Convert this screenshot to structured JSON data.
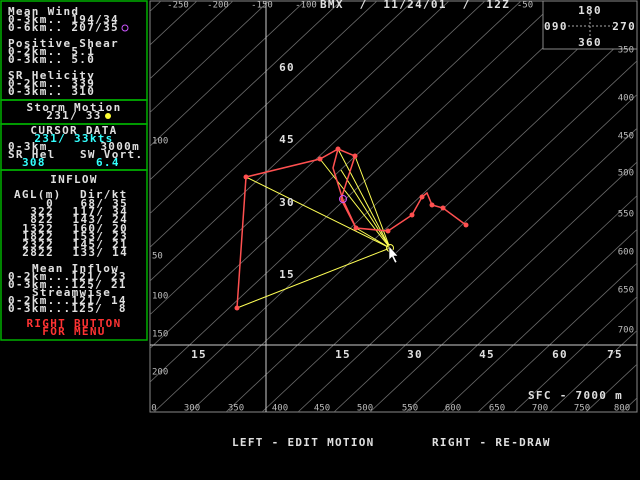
{
  "panel": {
    "mean_wind": {
      "title": "Mean Wind",
      "rows": [
        "0-3km.. 194/34",
        "0-6km.. 207/35"
      ]
    },
    "positive_shear": {
      "title": "Positive Shear",
      "rows": [
        "0-2km.. 5.1",
        "0-3km.. 5.0"
      ]
    },
    "sr_helicity": {
      "title": "SR Helicity",
      "rows": [
        "0-2km.. 339",
        "0-3km.. 310"
      ]
    },
    "storm_motion": {
      "title": "Storm Motion",
      "value": "231/ 33"
    },
    "cursor_data": {
      "title": "CURSOR DATA",
      "wind": "231/ 33kts",
      "layer": "0-3km",
      "height": "3000m",
      "labels": [
        "SR Hel",
        "SW Vort."
      ],
      "values": [
        "308",
        "6.4"
      ]
    },
    "inflow": {
      "title": "INFLOW",
      "headers": [
        "AGL(m)",
        "Dir/kt"
      ],
      "rows": [
        [
          "0",
          "68/ 35"
        ],
        [
          "322",
          "117/ 34"
        ],
        [
          "822",
          "143/ 24"
        ],
        [
          "1322",
          "160/ 20"
        ],
        [
          "1822",
          "153/ 23"
        ],
        [
          "2322",
          "145/ 21"
        ],
        [
          "2822",
          "133/ 14"
        ]
      ],
      "mean_title": "Mean Inflow",
      "mean_rows": [
        "0-2km...121/ 23",
        "0-3km...125/ 21"
      ],
      "stream_title": "Streamwise",
      "stream_rows": [
        "0-2km...121/ 14",
        "0-3km...125/  8"
      ]
    },
    "menu": [
      "RIGHT BUTTON",
      "FOR MENU"
    ]
  },
  "plot": {
    "title": "BMX  /  11/24/01  /  12Z",
    "compass": [
      "180",
      "090",
      "270",
      "360"
    ],
    "top_labels": [
      "-250",
      "-200",
      "-150",
      "-100",
      "-50"
    ],
    "right_labels": [
      "350",
      "400",
      "450",
      "500",
      "550",
      "600",
      "650",
      "700"
    ],
    "left_labels": [
      "100",
      "50",
      "100",
      "150",
      "200"
    ],
    "bottom_labels": [
      "0",
      "300",
      "350",
      "400",
      "450",
      "500",
      "550",
      "600",
      "650",
      "700",
      "750",
      "800"
    ],
    "x_speed_labels": [
      "15",
      "15",
      "30",
      "45",
      "60",
      "75"
    ],
    "y_speed_labels": [
      "60",
      "45",
      "30",
      "15"
    ],
    "layer": "SFC - 7000 m"
  },
  "footer": {
    "left": "LEFT - EDIT MOTION",
    "right": "RIGHT - RE-DRAW"
  }
}
